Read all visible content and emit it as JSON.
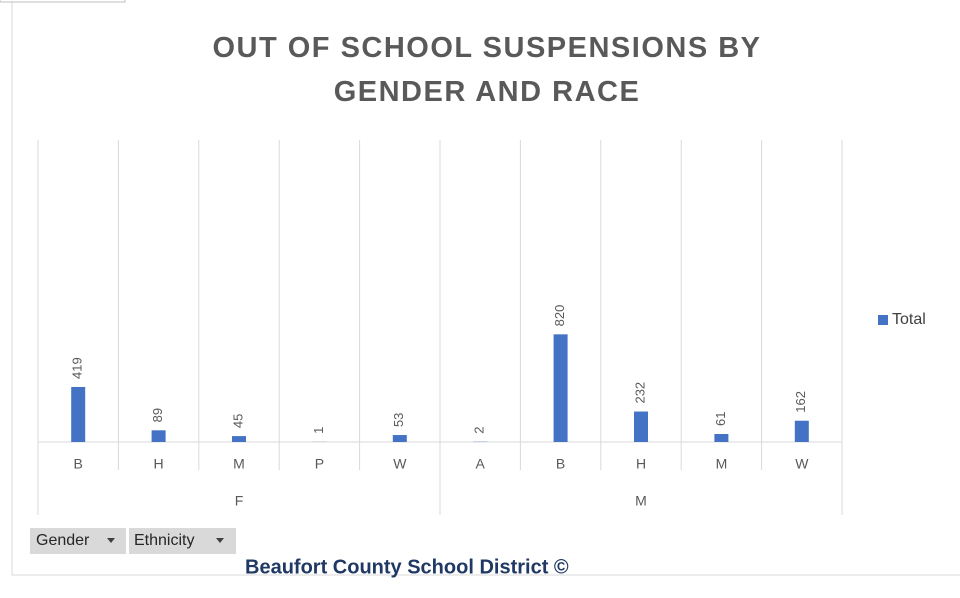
{
  "chart_data": {
    "type": "bar",
    "title": "OUT OF SCHOOL SUSPENSIONS BY GENDER AND RACE",
    "groups": [
      {
        "name": "F",
        "categories": [
          "B",
          "H",
          "M",
          "P",
          "W"
        ]
      },
      {
        "name": "M",
        "categories": [
          "A",
          "B",
          "H",
          "M",
          "W"
        ]
      }
    ],
    "series": [
      {
        "name": "Total",
        "color": "#4472c4",
        "values": [
          419,
          89,
          45,
          1,
          53,
          2,
          820,
          232,
          61,
          162
        ]
      }
    ],
    "ylim": [
      0,
      2300
    ],
    "grid": true,
    "legend": "right",
    "filters": [
      "Gender",
      "Ethnicity"
    ],
    "footer": "Beaufort County School District ©"
  }
}
